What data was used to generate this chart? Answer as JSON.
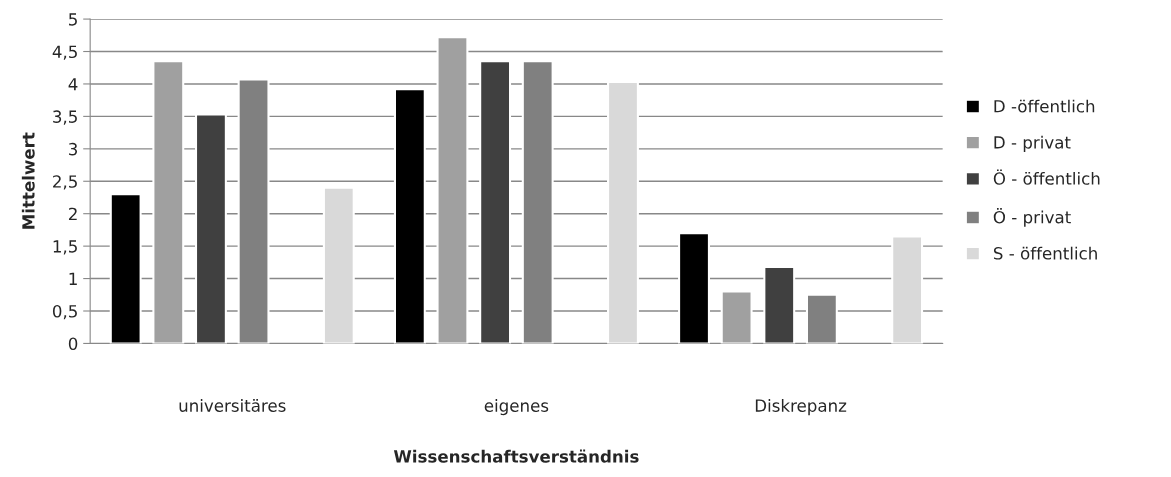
{
  "chart_data": {
    "type": "bar",
    "xlabel": "Wissenschaftsverständnis",
    "ylabel": "Mittelwert",
    "categories": [
      "universitäres",
      "eigenes",
      "Diskrepanz"
    ],
    "series": [
      {
        "name": "D -öffentlich",
        "color": "#000000",
        "values": [
          2.3,
          3.92,
          1.7
        ]
      },
      {
        "name": "D - privat",
        "color": "#a0a0a0",
        "values": [
          4.35,
          4.72,
          0.8
        ]
      },
      {
        "name": "Ö - öffentlich",
        "color": "#404040",
        "values": [
          3.53,
          4.35,
          1.18
        ]
      },
      {
        "name": "Ö - privat",
        "color": "#808080",
        "values": [
          4.07,
          4.35,
          0.75
        ]
      },
      {
        "values": [
          null,
          null,
          null
        ]
      },
      {
        "name": "S - öffentlich",
        "color": "#d9d9d9",
        "values": [
          2.4,
          4.03,
          1.65
        ]
      }
    ],
    "ylim": [
      0,
      5
    ],
    "yticks": [
      0,
      {
        "value": 0.5,
        "label": "0,5"
      },
      1,
      {
        "value": 1.5,
        "label": "1,5"
      },
      2,
      {
        "value": 2.5,
        "label": "2,5"
      },
      3,
      {
        "value": 3.5,
        "label": "3,5"
      },
      4,
      {
        "value": 4.5,
        "label": "4,5"
      },
      5
    ],
    "grid": "y",
    "legend": "right"
  }
}
